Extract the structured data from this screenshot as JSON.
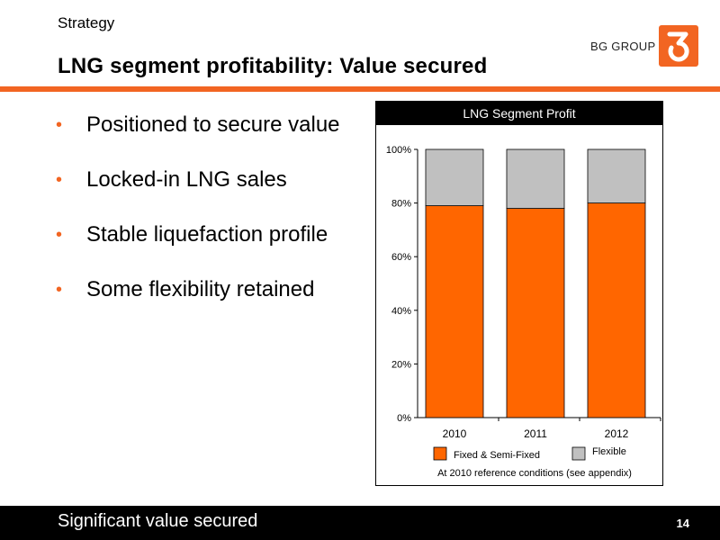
{
  "header": {
    "section": "Strategy",
    "title": "LNG segment profitability: Value secured"
  },
  "logo": {
    "text": "BG GROUP",
    "mark_icon": "bg-group-logo-icon"
  },
  "bullets": [
    "Positioned to secure value",
    "Locked-in LNG sales",
    "Stable liquefaction profile",
    "Some flexibility retained"
  ],
  "footer": {
    "text": "Significant value secured",
    "page_number": "14"
  },
  "colors": {
    "accent": "#f26522",
    "bar_fixed": "#ff6600",
    "bar_flexible": "#c0c0c0"
  },
  "chart_data": {
    "type": "bar",
    "stacked": true,
    "title": "LNG Segment Profit",
    "categories": [
      "2010",
      "2011",
      "2012"
    ],
    "series": [
      {
        "name": "Fixed & Semi-Fixed",
        "values": [
          79,
          78,
          80
        ],
        "color": "#ff6600"
      },
      {
        "name": "Flexible",
        "values": [
          21,
          22,
          20
        ],
        "color": "#c0c0c0"
      }
    ],
    "ylim": [
      0,
      100
    ],
    "yticks": [
      "0%",
      "20%",
      "40%",
      "60%",
      "80%",
      "100%"
    ],
    "note": "At 2010 reference conditions (see appendix)",
    "grid": false,
    "legend_position": "bottom"
  }
}
